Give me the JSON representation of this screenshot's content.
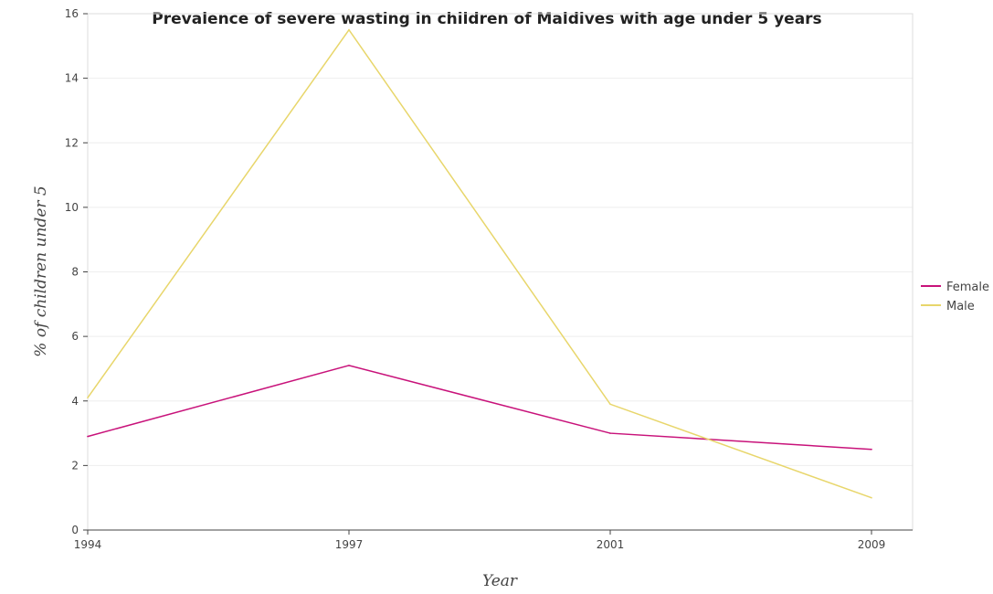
{
  "chart_data": {
    "type": "line",
    "title": "Prevalence of severe wasting in children of Maldives with age under 5 years",
    "xlabel": "Year",
    "ylabel": "% of children under 5",
    "categories": [
      "1994",
      "1997",
      "2001",
      "2009"
    ],
    "ylim": [
      0,
      16
    ],
    "yticks": [
      0,
      2,
      4,
      6,
      8,
      10,
      12,
      14,
      16
    ],
    "grid": true,
    "legend_position": "right",
    "series": [
      {
        "name": "Female",
        "color": "#c8127a",
        "values": [
          2.9,
          5.1,
          3.0,
          2.5
        ]
      },
      {
        "name": "Male",
        "color": "#e8d66b",
        "values": [
          4.1,
          15.5,
          3.9,
          1.0
        ]
      }
    ]
  }
}
